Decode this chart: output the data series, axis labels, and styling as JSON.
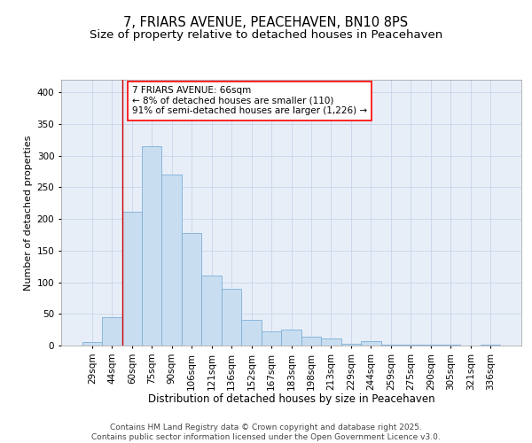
{
  "title1": "7, FRIARS AVENUE, PEACEHAVEN, BN10 8PS",
  "title2": "Size of property relative to detached houses in Peacehaven",
  "xlabel": "Distribution of detached houses by size in Peacehaven",
  "ylabel": "Number of detached properties",
  "categories": [
    "29sqm",
    "44sqm",
    "60sqm",
    "75sqm",
    "90sqm",
    "106sqm",
    "121sqm",
    "136sqm",
    "152sqm",
    "167sqm",
    "183sqm",
    "198sqm",
    "213sqm",
    "229sqm",
    "244sqm",
    "259sqm",
    "275sqm",
    "290sqm",
    "305sqm",
    "321sqm",
    "336sqm"
  ],
  "values": [
    5,
    45,
    212,
    315,
    270,
    178,
    110,
    90,
    40,
    23,
    25,
    14,
    11,
    3,
    7,
    2,
    1,
    1,
    2,
    0,
    2
  ],
  "bar_color": "#c9ddf0",
  "bar_edge_color": "#7ab0d8",
  "bg_color": "#e8eef8",
  "grid_color": "#c8d4e8",
  "vline_color": "#cc0000",
  "annotation_text": "7 FRIARS AVENUE: 66sqm\n← 8% of detached houses are smaller (110)\n91% of semi-detached houses are larger (1,226) →",
  "footer_text": "Contains HM Land Registry data © Crown copyright and database right 2025.\nContains public sector information licensed under the Open Government Licence v3.0.",
  "ylim": [
    0,
    420
  ],
  "yticks": [
    0,
    50,
    100,
    150,
    200,
    250,
    300,
    350,
    400
  ],
  "title1_fontsize": 10.5,
  "title2_fontsize": 9.5,
  "xlabel_fontsize": 8.5,
  "ylabel_fontsize": 8,
  "tick_fontsize": 7.5,
  "annotation_fontsize": 7.5,
  "footer_fontsize": 6.5
}
